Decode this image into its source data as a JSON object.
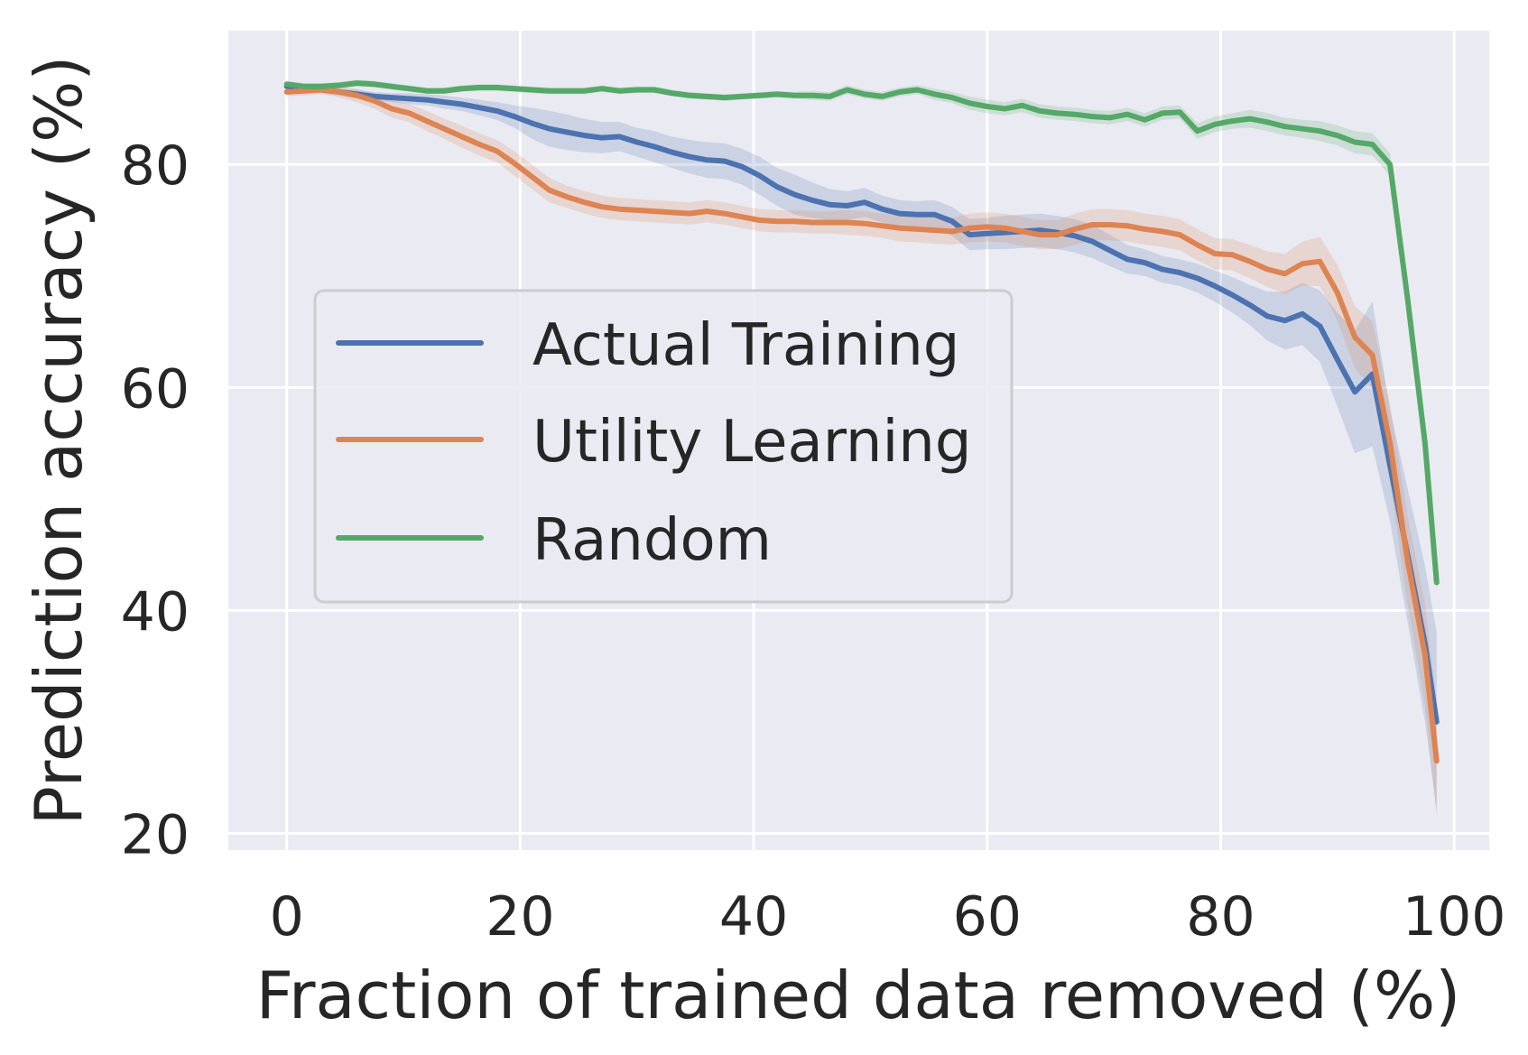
{
  "chart_data": {
    "type": "line",
    "title": "",
    "xlabel": "Fraction of trained data removed (%)",
    "ylabel": "Prediction accuracy (%)",
    "xlim": [
      -5,
      103
    ],
    "ylim": [
      18.5,
      92
    ],
    "xticks": [
      0,
      20,
      40,
      60,
      80,
      100
    ],
    "yticks": [
      20,
      40,
      60,
      80
    ],
    "grid": true,
    "legend_position": "center-left",
    "x": [
      0,
      1.5,
      3,
      4.5,
      6,
      7.5,
      9,
      10.5,
      12,
      13.5,
      15,
      16.5,
      18,
      19.5,
      21,
      22.5,
      24,
      25.5,
      27,
      28.5,
      30,
      31.5,
      33,
      34.5,
      36,
      37.5,
      39,
      40.5,
      42,
      43.5,
      45,
      46.5,
      48,
      49.5,
      51,
      52.5,
      54,
      55.5,
      57,
      58.5,
      60,
      61.5,
      63,
      64.5,
      66,
      67.5,
      69,
      70.5,
      72,
      73.5,
      75,
      76.5,
      78,
      79.5,
      81,
      82.5,
      84,
      85.5,
      87,
      88.5,
      90,
      91.5,
      93,
      94.5,
      96,
      97.5,
      98.5
    ],
    "series": [
      {
        "name": "Actual Training",
        "color": "#4c72b0",
        "values": [
          87.0,
          86.9,
          86.7,
          86.5,
          86.3,
          86.1,
          86.0,
          85.9,
          85.8,
          85.6,
          85.4,
          85.1,
          84.8,
          84.3,
          83.7,
          83.2,
          82.9,
          82.6,
          82.4,
          82.5,
          82.0,
          81.6,
          81.1,
          80.7,
          80.4,
          80.3,
          79.8,
          79.0,
          78.0,
          77.3,
          76.8,
          76.4,
          76.3,
          76.6,
          76.0,
          75.6,
          75.5,
          75.5,
          74.9,
          73.7,
          73.8,
          73.9,
          74.0,
          74.1,
          73.9,
          73.6,
          73.1,
          72.3,
          71.5,
          71.2,
          70.6,
          70.3,
          69.8,
          69.1,
          68.3,
          67.4,
          66.4,
          66.0,
          66.6,
          65.5,
          62.5,
          59.6,
          61.2,
          53.0,
          45.0,
          37.0,
          30.0
        ],
        "band": [
          0.3,
          0.3,
          0.3,
          0.3,
          0.4,
          0.4,
          0.4,
          0.5,
          0.5,
          0.6,
          0.6,
          0.7,
          0.8,
          1.0,
          1.4,
          1.6,
          1.6,
          1.5,
          1.4,
          1.3,
          1.3,
          1.4,
          1.4,
          1.5,
          1.6,
          1.6,
          1.6,
          1.7,
          1.7,
          1.8,
          1.6,
          1.4,
          1.3,
          1.3,
          1.2,
          1.2,
          1.2,
          1.3,
          1.3,
          1.4,
          1.4,
          1.5,
          1.5,
          1.5,
          1.5,
          1.5,
          1.5,
          1.4,
          1.3,
          1.2,
          1.2,
          1.2,
          1.3,
          1.4,
          1.6,
          1.8,
          2.2,
          2.6,
          2.8,
          3.2,
          4.2,
          5.5,
          6.5,
          5.0,
          6.0,
          7.0,
          8.0
        ]
      },
      {
        "name": "Utility Learning",
        "color": "#dd8452",
        "values": [
          86.5,
          86.6,
          86.7,
          86.5,
          86.2,
          85.7,
          85.0,
          84.6,
          83.9,
          83.2,
          82.5,
          81.8,
          81.2,
          80.1,
          78.9,
          77.7,
          77.1,
          76.6,
          76.2,
          76.0,
          75.9,
          75.8,
          75.7,
          75.6,
          75.8,
          75.6,
          75.3,
          75.0,
          74.9,
          74.9,
          74.8,
          74.8,
          74.8,
          74.7,
          74.5,
          74.3,
          74.2,
          74.1,
          74.0,
          74.3,
          74.4,
          74.3,
          74.0,
          73.7,
          73.7,
          74.2,
          74.6,
          74.6,
          74.5,
          74.2,
          74.0,
          73.7,
          72.8,
          72.0,
          71.9,
          71.3,
          70.6,
          70.2,
          71.1,
          71.3,
          68.5,
          64.5,
          62.9,
          55.0,
          44.5,
          36.0,
          26.5
        ],
        "band": [
          0.4,
          0.4,
          0.4,
          0.5,
          0.6,
          0.7,
          0.8,
          0.8,
          0.9,
          0.9,
          1.0,
          1.0,
          1.0,
          1.1,
          1.1,
          1.1,
          1.0,
          1.0,
          1.0,
          1.0,
          1.0,
          1.0,
          1.0,
          1.0,
          1.0,
          1.0,
          1.0,
          1.0,
          1.0,
          1.0,
          1.0,
          1.0,
          1.1,
          1.1,
          1.1,
          1.2,
          1.2,
          1.2,
          1.2,
          1.3,
          1.3,
          1.3,
          1.3,
          1.3,
          1.3,
          1.4,
          1.4,
          1.4,
          1.4,
          1.4,
          1.4,
          1.4,
          1.4,
          1.4,
          1.4,
          1.5,
          1.6,
          1.8,
          2.0,
          2.2,
          2.5,
          2.8,
          3.0,
          3.5,
          4.0,
          4.5,
          5.0
        ]
      },
      {
        "name": "Random",
        "color": "#55a868",
        "values": [
          87.2,
          87.0,
          87.0,
          87.1,
          87.3,
          87.2,
          87.0,
          86.8,
          86.6,
          86.6,
          86.8,
          86.9,
          86.9,
          86.8,
          86.7,
          86.6,
          86.6,
          86.6,
          86.8,
          86.6,
          86.7,
          86.7,
          86.4,
          86.2,
          86.1,
          86.0,
          86.1,
          86.2,
          86.3,
          86.2,
          86.2,
          86.1,
          86.7,
          86.3,
          86.1,
          86.5,
          86.7,
          86.3,
          86.0,
          85.5,
          85.2,
          85.0,
          85.3,
          84.8,
          84.6,
          84.5,
          84.3,
          84.2,
          84.5,
          84.0,
          84.6,
          84.7,
          83.0,
          83.6,
          83.9,
          84.1,
          83.8,
          83.4,
          83.2,
          83.0,
          82.6,
          82.0,
          81.8,
          80.0,
          68.0,
          55.0,
          42.5
        ],
        "band": [
          0.3,
          0.3,
          0.3,
          0.3,
          0.3,
          0.3,
          0.3,
          0.3,
          0.3,
          0.3,
          0.3,
          0.3,
          0.3,
          0.3,
          0.3,
          0.3,
          0.3,
          0.3,
          0.3,
          0.3,
          0.3,
          0.3,
          0.3,
          0.3,
          0.3,
          0.3,
          0.3,
          0.3,
          0.3,
          0.3,
          0.4,
          0.4,
          0.4,
          0.4,
          0.4,
          0.4,
          0.4,
          0.5,
          0.5,
          0.6,
          0.6,
          0.6,
          0.6,
          0.6,
          0.6,
          0.6,
          0.6,
          0.6,
          0.6,
          0.6,
          0.6,
          0.6,
          0.7,
          0.7,
          0.7,
          0.8,
          0.8,
          0.8,
          0.8,
          0.9,
          0.9,
          1.0,
          1.0,
          1.0,
          1.0,
          1.0,
          1.0
        ]
      }
    ]
  }
}
